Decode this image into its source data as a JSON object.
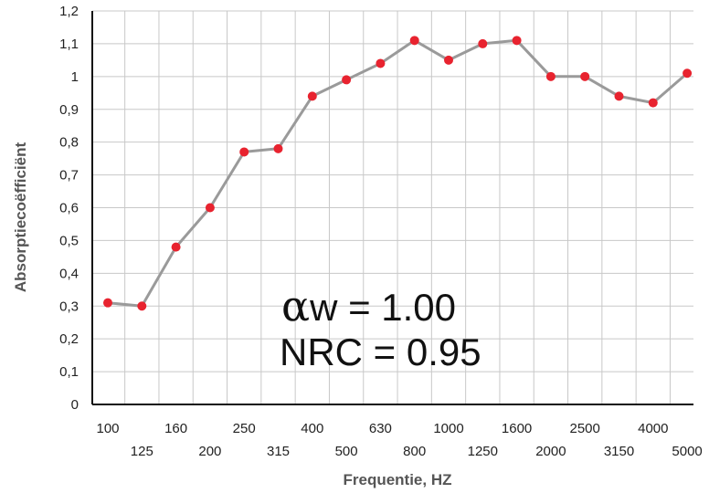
{
  "chart_data": {
    "type": "line",
    "xlabel": "Frequentie, HZ",
    "ylabel": "Absorptiecoëfficiënt",
    "ylim": [
      0,
      1.2
    ],
    "yticks": [
      "0",
      "0,1",
      "0,2",
      "0,3",
      "0,4",
      "0,5",
      "0,6",
      "0,7",
      "0,8",
      "0,9",
      "1",
      "1,1",
      "1,2"
    ],
    "categories": [
      "100",
      "125",
      "160",
      "200",
      "250",
      "315",
      "400",
      "500",
      "630",
      "800",
      "1000",
      "1250",
      "1600",
      "2000",
      "2500",
      "3150",
      "4000",
      "5000"
    ],
    "series": [
      {
        "values": [
          0.31,
          0.3,
          0.48,
          0.6,
          0.77,
          0.78,
          0.94,
          0.99,
          1.04,
          1.11,
          1.05,
          1.1,
          1.11,
          1.0,
          1.0,
          0.94,
          0.92,
          1.01
        ]
      }
    ],
    "grid": true,
    "colors": {
      "line": "#9a9a9a",
      "marker": "#e8232f",
      "grid": "#c8c8c8",
      "axis": "#111111"
    },
    "annotations": {
      "alpha_symbol": "α",
      "alpha_rest": "w  = 1.00",
      "nrc": "NRC = 0.95"
    }
  }
}
